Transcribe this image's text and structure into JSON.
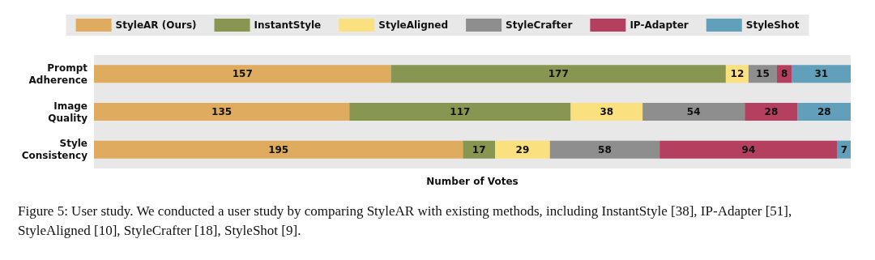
{
  "chart_data": {
    "type": "bar",
    "orientation": "horizontal",
    "stacked": true,
    "xlabel": "Number of Votes",
    "categories": [
      "Prompt\nAdherence",
      "Image\nQuality",
      "Style\nConsistency"
    ],
    "series": [
      {
        "name": "StyleAR (Ours)",
        "color": "#dfac5f",
        "values": [
          157,
          135,
          195
        ]
      },
      {
        "name": "InstantStyle",
        "color": "#879752",
        "values": [
          177,
          117,
          17
        ]
      },
      {
        "name": "StyleAligned",
        "color": "#fbe07f",
        "values": [
          12,
          38,
          29
        ]
      },
      {
        "name": "StyleCrafter",
        "color": "#8e8e8e",
        "values": [
          15,
          54,
          58
        ]
      },
      {
        "name": "IP-Adapter",
        "color": "#b43f5f",
        "values": [
          8,
          28,
          94
        ]
      },
      {
        "name": "StyleShot",
        "color": "#629fbb",
        "values": [
          31,
          28,
          7
        ]
      }
    ],
    "xlim": [
      0,
      400
    ],
    "data_labels": true,
    "legend": "top",
    "grid": false,
    "tick_labels": "y",
    "annotations": [
      "Figure 5: User study. We conducted a user study by comparing StyleAR with existing methods, including InstantStyle [38], IP-Adapter [51], StyleAligned [10], StyleCrafter [18], StyleShot [9]."
    ]
  }
}
